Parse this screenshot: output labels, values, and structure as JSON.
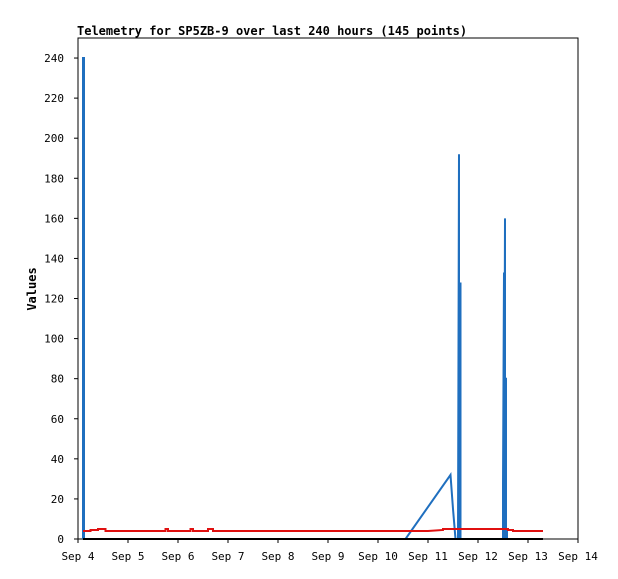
{
  "chart_data": {
    "type": "line",
    "title": "Telemetry for SP5ZB-9 over last 240 hours (145 points)",
    "xlabel": "",
    "ylabel": "Values",
    "xlim": [
      "Sep 4",
      "Sep 14"
    ],
    "ylim": [
      0,
      250
    ],
    "x_ticks": [
      "Sep 4",
      "Sep 5",
      "Sep 6",
      "Sep 7",
      "Sep 8",
      "Sep 9",
      "Sep 10",
      "Sep 11",
      "Sep 12",
      "Sep 13",
      "Sep 14"
    ],
    "y_ticks": [
      0,
      20,
      40,
      60,
      80,
      100,
      120,
      140,
      160,
      180,
      200,
      220,
      240
    ],
    "grid": false,
    "legend": "none",
    "series_note": "x values expressed as day-of-September (fractional)",
    "series": [
      {
        "color": "#1f6fbf",
        "x": [
          4.1,
          4.1,
          4.12,
          4.12,
          10.55,
          11.45,
          11.5,
          11.55,
          11.55,
          11.6,
          11.62,
          11.62,
          11.65,
          11.65,
          11.68,
          11.68,
          12.4,
          12.5,
          12.5,
          12.52,
          12.52,
          12.54,
          12.54,
          12.56,
          12.56,
          12.58,
          12.58,
          13.3
        ],
        "y": [
          0,
          240,
          240,
          0,
          0,
          32,
          15,
          0,
          0,
          0,
          192,
          0,
          128,
          0,
          0,
          0,
          0,
          0,
          27,
          133,
          0,
          160,
          80,
          80,
          0,
          5,
          0,
          0
        ]
      },
      {
        "color": "#e01010",
        "x": [
          4.1,
          4.25,
          4.25,
          4.4,
          4.4,
          4.55,
          4.55,
          5.75,
          5.75,
          5.8,
          5.8,
          6.25,
          6.25,
          6.3,
          6.3,
          6.6,
          6.6,
          6.7,
          6.7,
          11.0,
          11.3,
          11.3,
          12.6,
          12.6,
          12.7,
          12.7,
          13.3
        ],
        "y": [
          4,
          4,
          4.5,
          4.5,
          5,
          5,
          4,
          4,
          5,
          5,
          4,
          4,
          5,
          5,
          4,
          4,
          5,
          5,
          4,
          4,
          4.5,
          5,
          5,
          4.5,
          4.5,
          4,
          4
        ]
      },
      {
        "color": "#000000",
        "x": [
          4.1,
          13.3
        ],
        "y": [
          0,
          0
        ]
      }
    ]
  }
}
